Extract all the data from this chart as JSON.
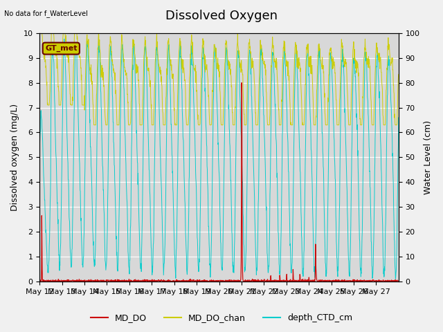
{
  "title": "Dissolved Oxygen",
  "top_left_text": "No data for f_WaterLevel",
  "ylabel_left": "Dissolved oxygen (mg/L)",
  "ylabel_right": "Water Level (cm)",
  "ylim_left": [
    0,
    10
  ],
  "ylim_right": [
    0,
    100
  ],
  "yticks_left": [
    0.0,
    1.0,
    2.0,
    3.0,
    4.0,
    5.0,
    6.0,
    7.0,
    8.0,
    9.0,
    10.0
  ],
  "yticks_right": [
    0,
    10,
    20,
    30,
    40,
    50,
    60,
    70,
    80,
    90,
    100
  ],
  "xtick_labels": [
    "May 12",
    "May 13",
    "May 14",
    "May 15",
    "May 16",
    "May 17",
    "May 18",
    "May 19",
    "May 20",
    "May 21",
    "May 22",
    "May 23",
    "May 24",
    "May 25",
    "May 26",
    "May 27"
  ],
  "color_MD_DO": "#cc0000",
  "color_MD_DO_chan": "#cccc00",
  "color_depth_CTD_cm": "#00cccc",
  "legend_label_1": "MD_DO",
  "legend_label_2": "MD_DO_chan",
  "legend_label_3": "depth_CTD_cm",
  "box_label": "GT_met",
  "box_color": "#cccc00",
  "box_text_color": "#660000",
  "plot_bg_color": "#d8d8d8",
  "fig_bg_color": "#f0f0f0",
  "title_fontsize": 13,
  "label_fontsize": 9,
  "tick_fontsize": 8
}
